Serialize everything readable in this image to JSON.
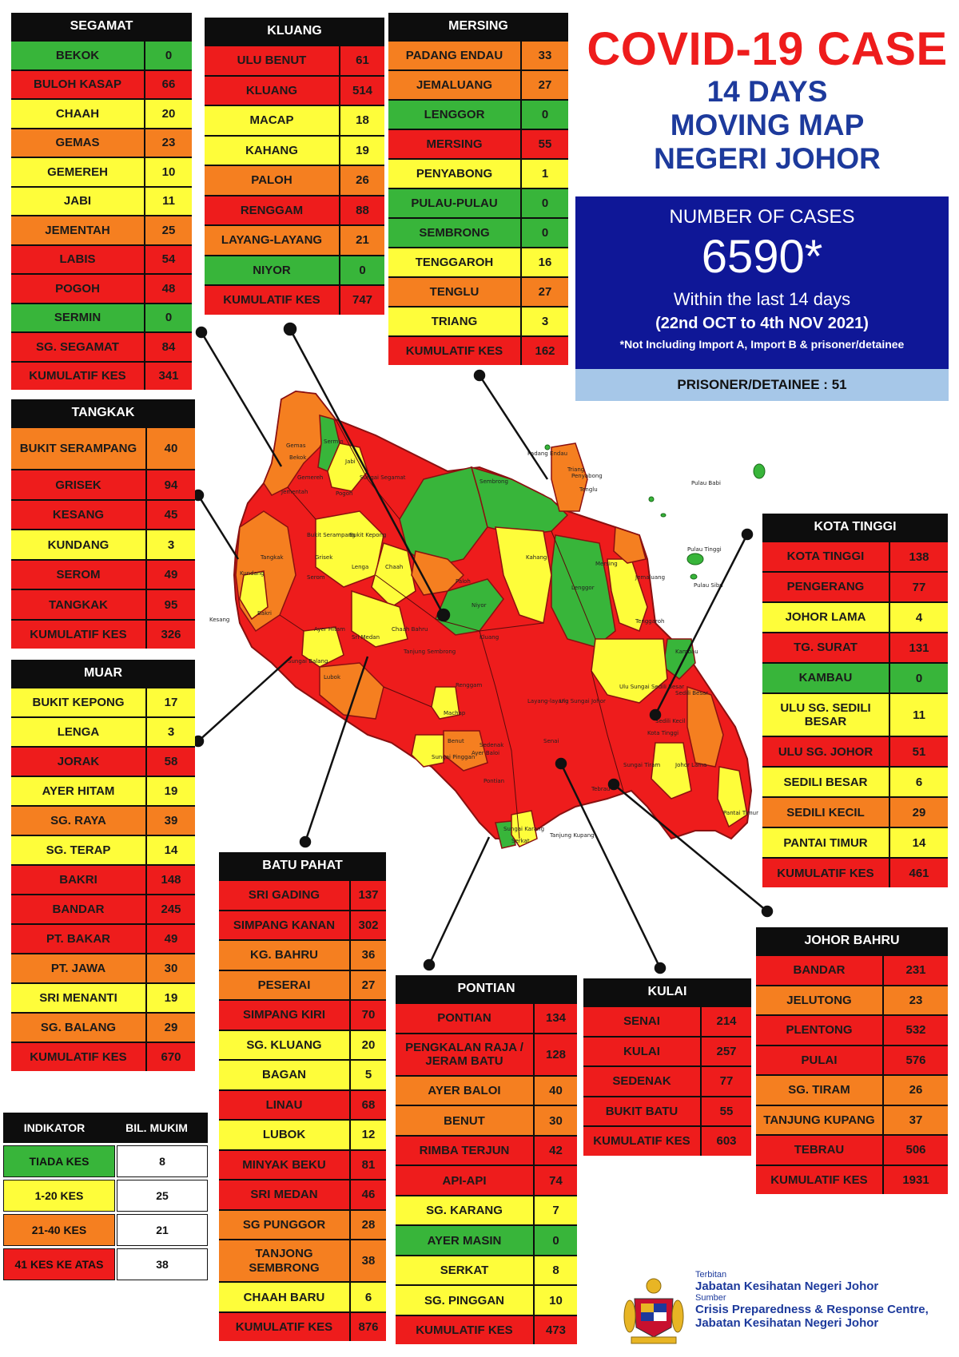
{
  "title": {
    "main": "COVID-19 CASE",
    "line1": "14 DAYS",
    "line2": "MOVING MAP",
    "line3": "NEGERI JOHOR"
  },
  "cases": {
    "label": "NUMBER OF CASES",
    "total": "6590*",
    "within": "Within the last 14 days",
    "range": "(22nd OCT to 4th NOV 2021)",
    "note": "*Not Including Import A, Import B & prisoner/detainee"
  },
  "prisoner": "PRISONER/DETAINEE : 51",
  "colors": {
    "red": "#ee1c1c",
    "orange": "#f57f20",
    "yellow": "#fefd3a",
    "green": "#38b53a",
    "header": "#0d0d0d",
    "cases_box": "#0f1797",
    "prisoner_box": "#a6c7e8",
    "title_red": "#ee1c1c",
    "title_blue": "#1d3a9c"
  },
  "districts": {
    "segamat": {
      "title": "SEGAMAT",
      "rows": [
        {
          "name": "BEKOK",
          "value": "0",
          "level": "green"
        },
        {
          "name": "BULOH KASAP",
          "value": "66",
          "level": "red"
        },
        {
          "name": "CHAAH",
          "value": "20",
          "level": "yellow"
        },
        {
          "name": "GEMAS",
          "value": "23",
          "level": "orange"
        },
        {
          "name": "GEMEREH",
          "value": "10",
          "level": "yellow"
        },
        {
          "name": "JABI",
          "value": "11",
          "level": "yellow"
        },
        {
          "name": "JEMENTAH",
          "value": "25",
          "level": "orange"
        },
        {
          "name": "LABIS",
          "value": "54",
          "level": "red"
        },
        {
          "name": "POGOH",
          "value": "48",
          "level": "red"
        },
        {
          "name": "SERMIN",
          "value": "0",
          "level": "green"
        },
        {
          "name": "SG. SEGAMAT",
          "value": "84",
          "level": "red"
        },
        {
          "name": "KUMULATIF KES",
          "value": "341",
          "level": "red"
        }
      ]
    },
    "kluang": {
      "title": "KLUANG",
      "rows": [
        {
          "name": "ULU BENUT",
          "value": "61",
          "level": "red"
        },
        {
          "name": "KLUANG",
          "value": "514",
          "level": "red"
        },
        {
          "name": "MACAP",
          "value": "18",
          "level": "yellow"
        },
        {
          "name": "KAHANG",
          "value": "19",
          "level": "yellow"
        },
        {
          "name": "PALOH",
          "value": "26",
          "level": "orange"
        },
        {
          "name": "RENGGAM",
          "value": "88",
          "level": "red"
        },
        {
          "name": "LAYANG-LAYANG",
          "value": "21",
          "level": "orange"
        },
        {
          "name": "NIYOR",
          "value": "0",
          "level": "green"
        },
        {
          "name": "KUMULATIF KES",
          "value": "747",
          "level": "red"
        }
      ]
    },
    "mersing": {
      "title": "MERSING",
      "rows": [
        {
          "name": "PADANG ENDAU",
          "value": "33",
          "level": "orange"
        },
        {
          "name": "JEMALUANG",
          "value": "27",
          "level": "orange"
        },
        {
          "name": "LENGGOR",
          "value": "0",
          "level": "green"
        },
        {
          "name": "MERSING",
          "value": "55",
          "level": "red"
        },
        {
          "name": "PENYABONG",
          "value": "1",
          "level": "yellow"
        },
        {
          "name": "PULAU-PULAU",
          "value": "0",
          "level": "green"
        },
        {
          "name": "SEMBRONG",
          "value": "0",
          "level": "green"
        },
        {
          "name": "TENGGAROH",
          "value": "16",
          "level": "yellow"
        },
        {
          "name": "TENGLU",
          "value": "27",
          "level": "orange"
        },
        {
          "name": "TRIANG",
          "value": "3",
          "level": "yellow"
        },
        {
          "name": "KUMULATIF KES",
          "value": "162",
          "level": "red"
        }
      ]
    },
    "tangkak": {
      "title": "TANGKAK",
      "rows": [
        {
          "name": "BUKIT SERAMPANG",
          "value": "40",
          "level": "orange"
        },
        {
          "name": "GRISEK",
          "value": "94",
          "level": "red"
        },
        {
          "name": "KESANG",
          "value": "45",
          "level": "red"
        },
        {
          "name": "KUNDANG",
          "value": "3",
          "level": "yellow"
        },
        {
          "name": "SEROM",
          "value": "49",
          "level": "red"
        },
        {
          "name": "TANGKAK",
          "value": "95",
          "level": "red"
        },
        {
          "name": "KUMULATIF KES",
          "value": "326",
          "level": "red"
        }
      ]
    },
    "muar": {
      "title": "MUAR",
      "rows": [
        {
          "name": "BUKIT KEPONG",
          "value": "17",
          "level": "yellow"
        },
        {
          "name": "LENGA",
          "value": "3",
          "level": "yellow"
        },
        {
          "name": "JORAK",
          "value": "58",
          "level": "red"
        },
        {
          "name": "AYER HITAM",
          "value": "19",
          "level": "yellow"
        },
        {
          "name": "SG. RAYA",
          "value": "39",
          "level": "orange"
        },
        {
          "name": "SG. TERAP",
          "value": "14",
          "level": "yellow"
        },
        {
          "name": "BAKRI",
          "value": "148",
          "level": "red"
        },
        {
          "name": "BANDAR",
          "value": "245",
          "level": "red"
        },
        {
          "name": "PT. BAKAR",
          "value": "49",
          "level": "red"
        },
        {
          "name": "PT. JAWA",
          "value": "30",
          "level": "orange"
        },
        {
          "name": "SRI MENANTI",
          "value": "19",
          "level": "yellow"
        },
        {
          "name": "SG. BALANG",
          "value": "29",
          "level": "orange"
        },
        {
          "name": "KUMULATIF KES",
          "value": "670",
          "level": "red"
        }
      ]
    },
    "kota_tinggi": {
      "title": "KOTA TINGGI",
      "rows": [
        {
          "name": "KOTA TINGGI",
          "value": "138",
          "level": "red"
        },
        {
          "name": "PENGERANG",
          "value": "77",
          "level": "red"
        },
        {
          "name": "JOHOR LAMA",
          "value": "4",
          "level": "yellow"
        },
        {
          "name": "TG. SURAT",
          "value": "131",
          "level": "red"
        },
        {
          "name": "KAMBAU",
          "value": "0",
          "level": "green"
        },
        {
          "name": "ULU SG. SEDILI BESAR",
          "value": "11",
          "level": "yellow"
        },
        {
          "name": "ULU SG. JOHOR",
          "value": "51",
          "level": "red"
        },
        {
          "name": "SEDILI BESAR",
          "value": "6",
          "level": "yellow"
        },
        {
          "name": "SEDILI KECIL",
          "value": "29",
          "level": "orange"
        },
        {
          "name": "PANTAI TIMUR",
          "value": "14",
          "level": "yellow"
        },
        {
          "name": "KUMULATIF KES",
          "value": "461",
          "level": "red"
        }
      ]
    },
    "batu_pahat": {
      "title": "BATU PAHAT",
      "rows": [
        {
          "name": "SRI GADING",
          "value": "137",
          "level": "red"
        },
        {
          "name": "SIMPANG KANAN",
          "value": "302",
          "level": "red"
        },
        {
          "name": "KG. BAHRU",
          "value": "36",
          "level": "orange"
        },
        {
          "name": "PESERAI",
          "value": "27",
          "level": "orange"
        },
        {
          "name": "SIMPANG KIRI",
          "value": "70",
          "level": "red"
        },
        {
          "name": "SG. KLUANG",
          "value": "20",
          "level": "yellow"
        },
        {
          "name": "BAGAN",
          "value": "5",
          "level": "yellow"
        },
        {
          "name": "LINAU",
          "value": "68",
          "level": "red"
        },
        {
          "name": "LUBOK",
          "value": "12",
          "level": "yellow"
        },
        {
          "name": "MINYAK BEKU",
          "value": "81",
          "level": "red"
        },
        {
          "name": "SRI MEDAN",
          "value": "46",
          "level": "red"
        },
        {
          "name": "SG PUNGGOR",
          "value": "28",
          "level": "orange"
        },
        {
          "name": "TANJONG SEMBRONG",
          "value": "38",
          "level": "orange"
        },
        {
          "name": "CHAAH BARU",
          "value": "6",
          "level": "yellow"
        },
        {
          "name": "KUMULATIF KES",
          "value": "876",
          "level": "red"
        }
      ]
    },
    "pontian": {
      "title": "PONTIAN",
      "rows": [
        {
          "name": "PONTIAN",
          "value": "134",
          "level": "red"
        },
        {
          "name": "PENGKALAN RAJA / JERAM BATU",
          "value": "128",
          "level": "red"
        },
        {
          "name": "AYER BALOI",
          "value": "40",
          "level": "orange"
        },
        {
          "name": "BENUT",
          "value": "30",
          "level": "orange"
        },
        {
          "name": "RIMBA TERJUN",
          "value": "42",
          "level": "red"
        },
        {
          "name": "API-API",
          "value": "74",
          "level": "red"
        },
        {
          "name": "SG. KARANG",
          "value": "7",
          "level": "yellow"
        },
        {
          "name": "AYER MASIN",
          "value": "0",
          "level": "green"
        },
        {
          "name": "SERKAT",
          "value": "8",
          "level": "yellow"
        },
        {
          "name": "SG. PINGGAN",
          "value": "10",
          "level": "yellow"
        },
        {
          "name": "KUMULATIF KES",
          "value": "473",
          "level": "red"
        }
      ]
    },
    "kulai": {
      "title": "KULAI",
      "rows": [
        {
          "name": "SENAI",
          "value": "214",
          "level": "red"
        },
        {
          "name": "KULAI",
          "value": "257",
          "level": "red"
        },
        {
          "name": "SEDENAK",
          "value": "77",
          "level": "red"
        },
        {
          "name": "BUKIT BATU",
          "value": "55",
          "level": "red"
        },
        {
          "name": "KUMULATIF KES",
          "value": "603",
          "level": "red"
        }
      ]
    },
    "johor_bahru": {
      "title": "JOHOR BAHRU",
      "rows": [
        {
          "name": "BANDAR",
          "value": "231",
          "level": "red"
        },
        {
          "name": "JELUTONG",
          "value": "23",
          "level": "orange"
        },
        {
          "name": "PLENTONG",
          "value": "532",
          "level": "red"
        },
        {
          "name": "PULAI",
          "value": "576",
          "level": "red"
        },
        {
          "name": "SG. TIRAM",
          "value": "26",
          "level": "orange"
        },
        {
          "name": "TANJUNG KUPANG",
          "value": "37",
          "level": "orange"
        },
        {
          "name": "TEBRAU",
          "value": "506",
          "level": "red"
        },
        {
          "name": "KUMULATIF KES",
          "value": "1931",
          "level": "red"
        }
      ]
    }
  },
  "legend": {
    "head_left": "INDIKATOR",
    "head_right": "BIL. MUKIM",
    "rows": [
      {
        "label": "TIADA KES",
        "count": "8",
        "level": "green"
      },
      {
        "label": "1-20 KES",
        "count": "25",
        "level": "yellow"
      },
      {
        "label": "21-40 KES",
        "count": "21",
        "level": "orange"
      },
      {
        "label": "41 KES KE ATAS",
        "count": "38",
        "level": "red"
      }
    ]
  },
  "credit": {
    "published_label": "Terbitan",
    "published_by": "Jabatan Kesihatan Negeri Johor",
    "source_label": "Sumber",
    "source_line1": "Crisis Preparedness & Response Centre,",
    "source_line2": "Jabatan Kesihatan Negeri Johor"
  },
  "map_labels": [
    "Gemas",
    "Bekok",
    "Sermin",
    "Jabi",
    "Sungai Segamat",
    "Gemereh",
    "Jementah",
    "Pogoh",
    "Bukit Serampang",
    "Bukit Kepong",
    "Lenga",
    "Chaah",
    "Grisek",
    "Serom",
    "Kundang",
    "Kesang",
    "Tangkak",
    "Bakri",
    "Ayer Hitam",
    "Sri Medan",
    "Chaah Bahru",
    "Tanjung Sembrong",
    "Paloh",
    "Niyor",
    "Kluang",
    "Kahang",
    "Lenggor",
    "Mersing",
    "Sembrong",
    "Padang Endau",
    "Triang",
    "Penyabong",
    "Tenglu",
    "Jemaluang",
    "Tenggaroh",
    "Pulau Babi",
    "Pulau Tinggi",
    "Pulau Sibu",
    "Renggam",
    "Layang-layang",
    "Ulu Sungai Johor",
    "Ulu Sungai Sedili Besar",
    "Kambau",
    "Sedili Besar",
    "Sedili Kecil",
    "Kota Tinggi",
    "Johor Lama",
    "Pantai Timur",
    "Machap",
    "Benut",
    "Sungai Pinggan",
    "Ayer Baloi",
    "Senai",
    "Sedenak",
    "Pontian",
    "Serkat",
    "Sungai Karang",
    "Tanjung Kupang",
    "Tebrau",
    "Sungai Tiram",
    "Lubok",
    "Sungai Balang"
  ]
}
